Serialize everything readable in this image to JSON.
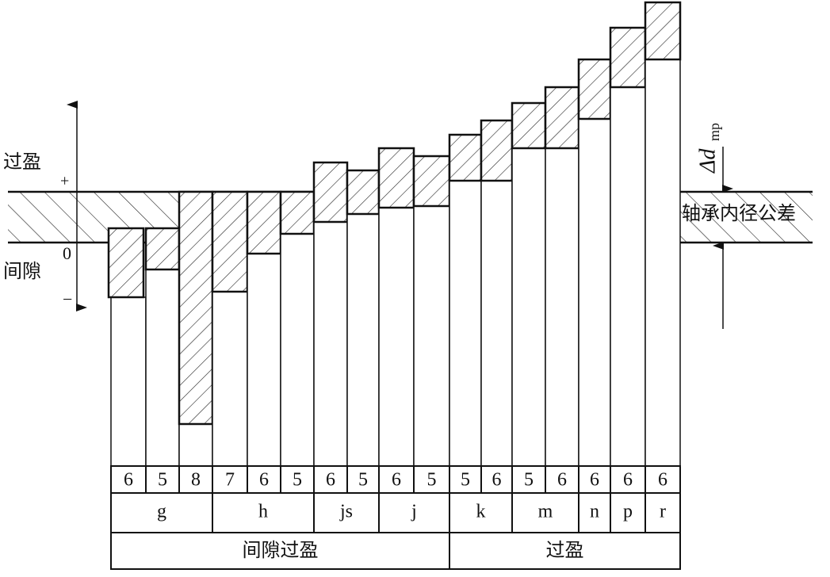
{
  "left_labels": {
    "interference": "过盈",
    "plus": "+",
    "zero": "0",
    "clearance": "间隙",
    "minus": "−"
  },
  "right_labels": {
    "delta_symbol": "Δd",
    "delta_subscript": "mp",
    "bearing_tolerance": "轴承内径公差"
  },
  "table": {
    "grades": [
      "6",
      "5",
      "8",
      "7",
      "6",
      "5",
      "6",
      "5",
      "6",
      "5",
      "5",
      "6",
      "5",
      "6",
      "6",
      "6",
      "6"
    ],
    "letters": [
      "g",
      "h",
      "js",
      "j",
      "k",
      "m",
      "n",
      "p",
      "r"
    ],
    "groups": [
      "间隙过盈",
      "过盈"
    ]
  }
}
